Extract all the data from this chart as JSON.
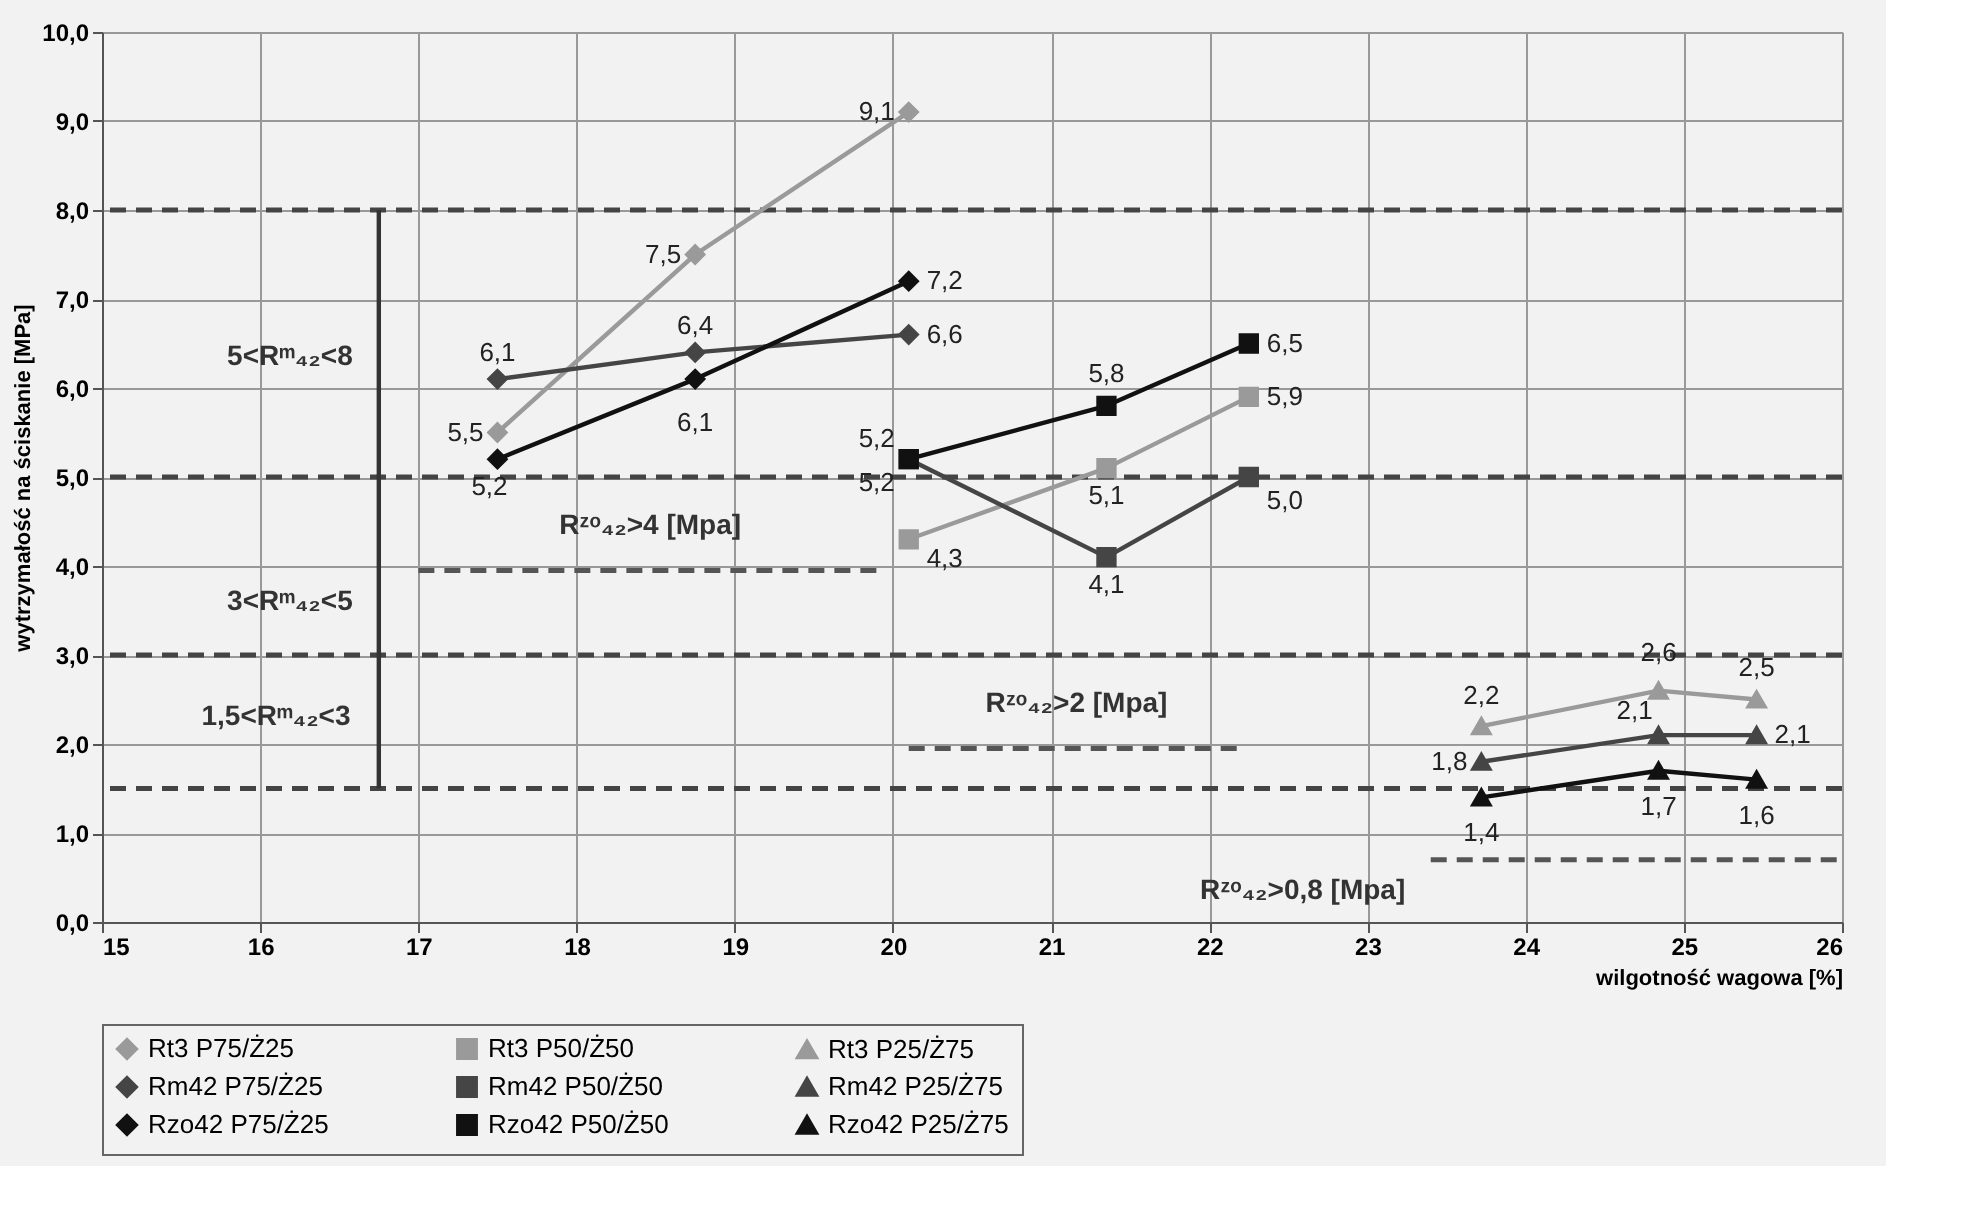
{
  "chart_data": {
    "type": "line",
    "xlabel": "wilgotność wagowa [%]",
    "ylabel": "wytrzymałość na ściskanie [MPa]",
    "xlim": [
      15,
      26
    ],
    "xticks": [
      15,
      16,
      17,
      18,
      19,
      20,
      21,
      22,
      23,
      24,
      25,
      26
    ],
    "ylim": [
      0,
      10
    ],
    "yticks": [
      {
        "value": 0,
        "label": "0,0"
      },
      {
        "value": 1,
        "label": "1,0"
      },
      {
        "value": 2,
        "label": "2,0"
      },
      {
        "value": 3,
        "label": "3,0"
      },
      {
        "value": 4,
        "label": "4,0"
      },
      {
        "value": 5,
        "label": "5,0"
      },
      {
        "value": 6,
        "label": "6,0"
      },
      {
        "value": 7,
        "label": "7,0"
      },
      {
        "value": 8,
        "label": "8,0"
      },
      {
        "value": 9,
        "label": "9,0"
      },
      {
        "value": 10,
        "label": "10,0"
      }
    ],
    "grid": true,
    "legend": "bottom",
    "series": [
      {
        "name": "Rt3 P75/Ż25",
        "color": "#9a9a9a",
        "marker": "diamond",
        "line_style": "solid",
        "x": [
          17.5,
          18.75,
          20.1
        ],
        "values": [
          5.5,
          7.5,
          9.1
        ],
        "value_labels": [
          "5,5",
          "7,5",
          "9,1"
        ]
      },
      {
        "name": "Rt3 P50/Ż50",
        "color": "#9a9a9a",
        "marker": "square",
        "line_style": "solid",
        "x": [
          20.1,
          21.35,
          22.25
        ],
        "values": [
          4.3,
          5.1,
          5.9
        ],
        "value_labels": [
          "4,3",
          "5,1",
          "5,9"
        ]
      },
      {
        "name": "Rt3 P25/Ż75",
        "color": "#9a9a9a",
        "marker": "triangle",
        "line_style": "solid",
        "x": [
          23.72,
          24.84,
          25.46
        ],
        "values": [
          2.2,
          2.6,
          2.5
        ],
        "value_labels": [
          "2,2",
          "2,6",
          "2,5"
        ]
      },
      {
        "name": "Rm42 P75/Ż25",
        "color": "#454545",
        "marker": "diamond",
        "line_style": "solid",
        "x": [
          17.5,
          18.75,
          20.1
        ],
        "values": [
          6.1,
          6.4,
          6.6
        ],
        "value_labels": [
          "6,1",
          "6,4",
          "6,6"
        ]
      },
      {
        "name": "Rm42 P50/Ż50",
        "color": "#454545",
        "marker": "square",
        "line_style": "solid",
        "x": [
          20.1,
          21.35,
          22.25
        ],
        "values": [
          5.2,
          4.1,
          5.0
        ],
        "value_labels": [
          "5,2",
          "4,1",
          "5,0"
        ]
      },
      {
        "name": "Rm42 P25/Ż75",
        "color": "#454545",
        "marker": "triangle",
        "line_style": "solid",
        "x": [
          23.72,
          24.84,
          25.46
        ],
        "values": [
          1.8,
          2.1,
          2.1
        ],
        "value_labels": [
          "1,8",
          "2,1",
          "2,1"
        ]
      },
      {
        "name": "Rzo42 P75/Ż25",
        "color": "#111111",
        "marker": "diamond",
        "line_style": "solid",
        "x": [
          17.5,
          18.75,
          20.1
        ],
        "values": [
          5.2,
          6.1,
          7.2
        ],
        "value_labels": [
          "5,2",
          "6,1",
          "7,2"
        ]
      },
      {
        "name": "Rzo42 P50/Ż50",
        "color": "#111111",
        "marker": "square",
        "line_style": "solid",
        "x": [
          20.1,
          21.35,
          22.25
        ],
        "values": [
          5.2,
          5.8,
          6.5
        ],
        "value_labels": [
          "5,2",
          "5,8",
          "6,5"
        ]
      },
      {
        "name": "Rzo42 P25/Ż75",
        "color": "#111111",
        "marker": "triangle",
        "line_style": "solid",
        "x": [
          23.72,
          24.84,
          25.46
        ],
        "values": [
          1.4,
          1.7,
          1.6
        ],
        "value_labels": [
          "1,4",
          "1,7",
          "1,6"
        ]
      },
      {
        "color": "#555555",
        "marker": "none",
        "line_style": "dashed",
        "x": [
          17.0,
          19.9
        ],
        "values": [
          3.95,
          3.95
        ]
      },
      {
        "color": "#555555",
        "marker": "none",
        "line_style": "dashed",
        "x": [
          20.1,
          22.2
        ],
        "values": [
          1.95,
          1.95
        ]
      },
      {
        "color": "#555555",
        "marker": "none",
        "line_style": "dashed",
        "x": [
          23.4,
          26.0
        ],
        "values": [
          0.7,
          0.7
        ]
      },
      {
        "color": "#333333",
        "marker": "none",
        "line_style": "solid",
        "x": [
          16.75,
          16.75
        ],
        "values": [
          1.5,
          8.0
        ]
      }
    ],
    "ref_lines": [
      {
        "axis": "y",
        "value": 8,
        "color": "#444444",
        "line_style": "dashed"
      },
      {
        "axis": "y",
        "value": 5,
        "color": "#444444",
        "line_style": "dashed"
      },
      {
        "axis": "y",
        "value": 3,
        "color": "#444444",
        "line_style": "dashed"
      },
      {
        "axis": "y",
        "value": 1.5,
        "color": "#444444",
        "line_style": "dashed"
      }
    ],
    "annotations": [
      "5<Rᵐ₄₂<8",
      "3<Rᵐ₄₂<5",
      "1,5<Rᵐ₄₂<3",
      "Rᶻᵒ₄₂>4 [Mpa]",
      "Rᶻᵒ₄₂>2 [Mpa]",
      "Rᶻᵒ₄₂>0,8 [Mpa]"
    ]
  }
}
